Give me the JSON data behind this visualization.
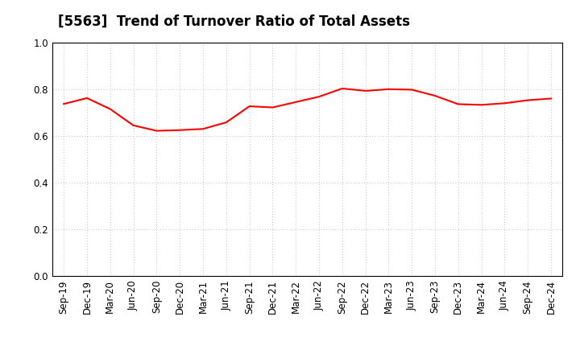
{
  "title": "[5563]  Trend of Turnover Ratio of Total Assets",
  "x_labels": [
    "Sep-19",
    "Dec-19",
    "Mar-20",
    "Jun-20",
    "Sep-20",
    "Dec-20",
    "Mar-21",
    "Jun-21",
    "Sep-21",
    "Dec-21",
    "Mar-22",
    "Jun-22",
    "Sep-22",
    "Dec-22",
    "Mar-23",
    "Jun-23",
    "Sep-23",
    "Dec-23",
    "Mar-24",
    "Jun-24",
    "Sep-24",
    "Dec-24"
  ],
  "values": [
    0.737,
    0.762,
    0.715,
    0.645,
    0.622,
    0.625,
    0.63,
    0.658,
    0.727,
    0.722,
    0.745,
    0.768,
    0.803,
    0.793,
    0.8,
    0.798,
    0.772,
    0.736,
    0.733,
    0.74,
    0.753,
    0.76
  ],
  "line_color": "#FF0000",
  "line_width": 1.5,
  "ylim": [
    0.0,
    1.0
  ],
  "yticks": [
    0.0,
    0.2,
    0.4,
    0.6,
    0.8,
    1.0
  ],
  "grid_color": "#aaaaaa",
  "background_color": "#ffffff",
  "title_fontsize": 12,
  "tick_fontsize": 8.5
}
